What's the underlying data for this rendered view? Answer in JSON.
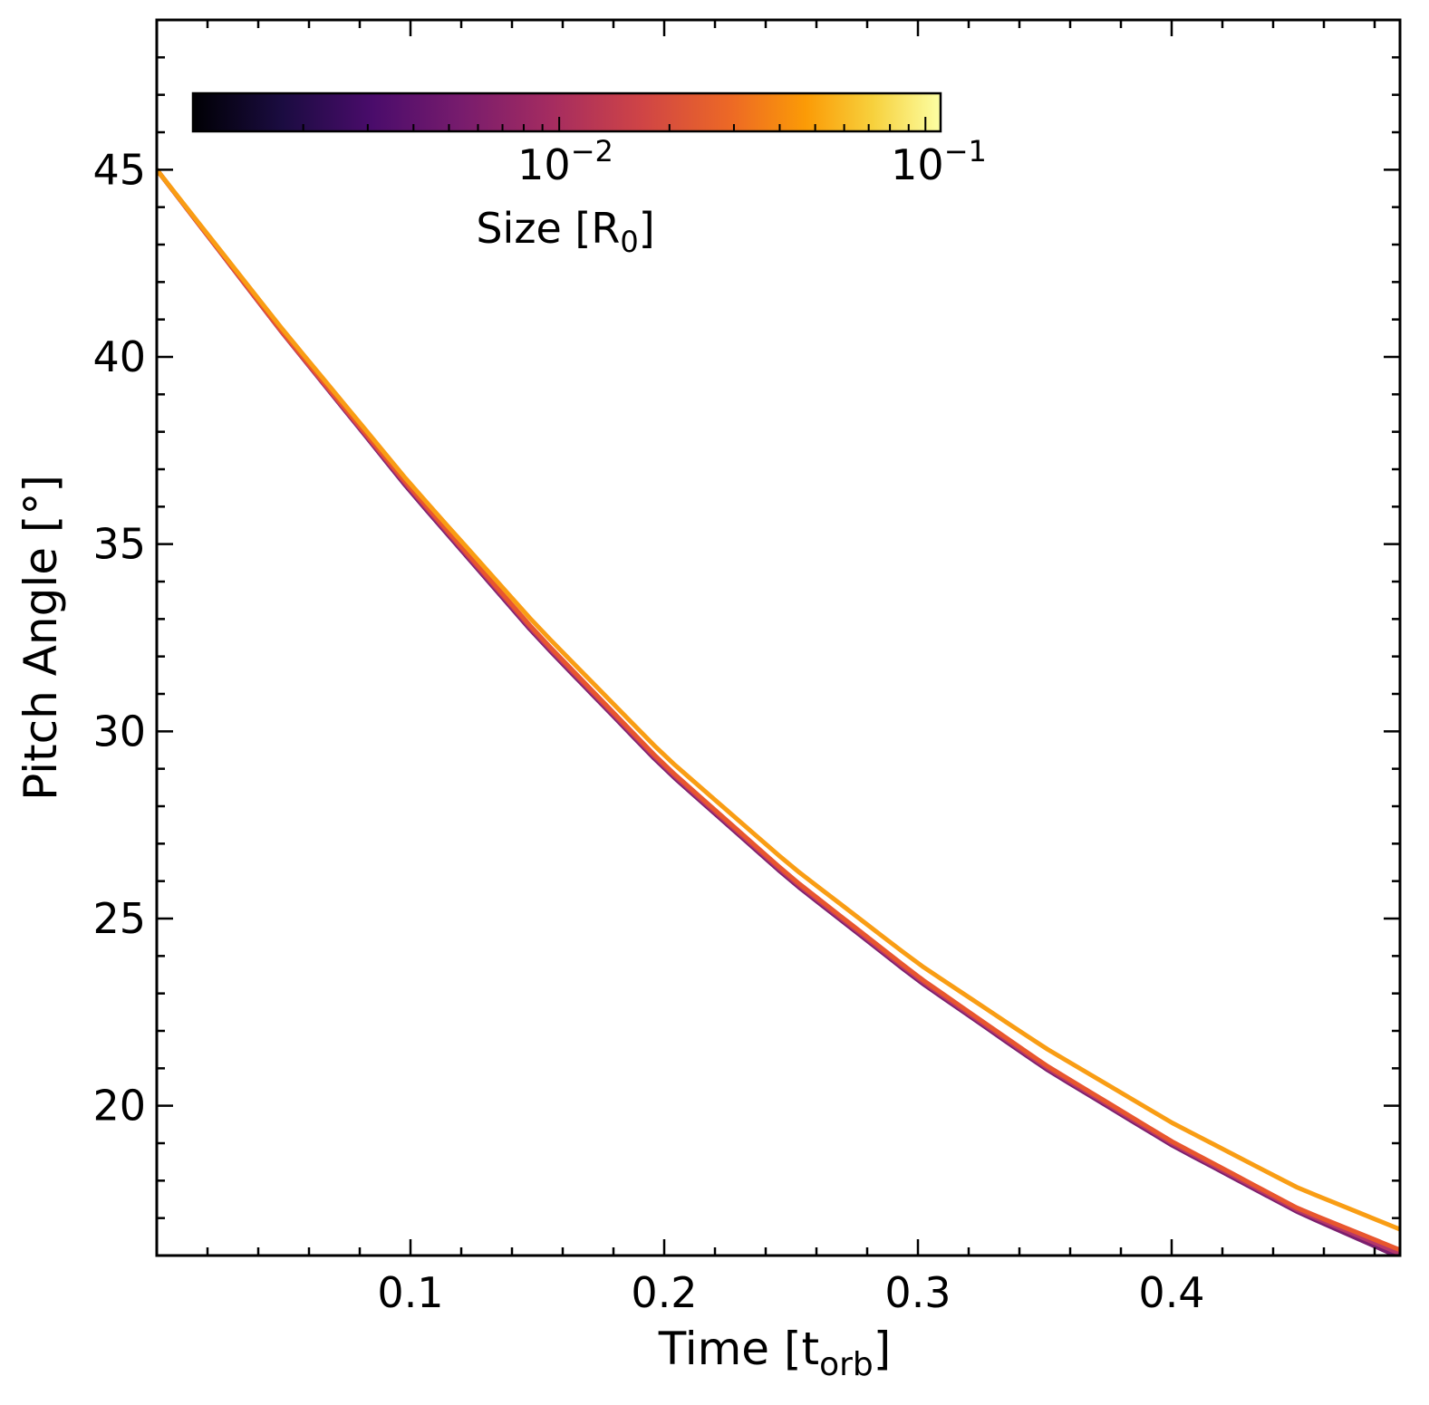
{
  "chart_data": {
    "type": "line",
    "xlabel": "Time [t",
    "xlabel_sub": "orb",
    "xlabel_close": "]",
    "ylabel": "Pitch Angle [°]",
    "xlim": [
      0.0,
      0.49
    ],
    "ylim": [
      16.0,
      49.0
    ],
    "xticks": [
      0.1,
      0.2,
      0.3,
      0.4
    ],
    "xtick_labels": [
      "0.1",
      "0.2",
      "0.3",
      "0.4"
    ],
    "yticks": [
      20,
      25,
      30,
      35,
      40,
      45
    ],
    "ytick_labels": [
      "20",
      "25",
      "30",
      "35",
      "40",
      "45"
    ],
    "grid": false,
    "colorbar": {
      "label": "Size [R",
      "label_sub": "0",
      "label_close": "]",
      "scale": "log",
      "range": [
        0.001,
        0.11
      ],
      "colormap": "inferno",
      "tick_labels": [
        {
          "base": "10",
          "exp": "−2",
          "value": 0.01
        },
        {
          "base": "10",
          "exp": "−1",
          "value": 0.1
        }
      ],
      "placement": "top-left, horizontal, inside axes"
    },
    "series": [
      {
        "color": "#7b1f6e",
        "size": 0.004,
        "x": [
          0.0,
          0.05,
          0.1,
          0.15,
          0.2,
          0.25,
          0.3,
          0.35,
          0.4,
          0.45,
          0.49
        ],
        "y": [
          45.0,
          40.6,
          36.4,
          32.5,
          29.0,
          26.0,
          23.35,
          21.0,
          18.95,
          17.15,
          15.95
        ]
      },
      {
        "color": "#b5366a",
        "size": 0.008,
        "x": [
          0.0,
          0.05,
          0.1,
          0.15,
          0.2,
          0.25,
          0.3,
          0.35,
          0.4,
          0.45,
          0.49
        ],
        "y": [
          45.0,
          40.6,
          36.45,
          32.55,
          29.05,
          26.05,
          23.4,
          21.05,
          19.0,
          17.2,
          16.05
        ]
      },
      {
        "color": "#e8562e",
        "size": 0.02,
        "x": [
          0.0,
          0.05,
          0.1,
          0.15,
          0.2,
          0.25,
          0.3,
          0.35,
          0.4,
          0.45,
          0.49
        ],
        "y": [
          45.0,
          40.62,
          36.5,
          32.6,
          29.1,
          26.1,
          23.45,
          21.1,
          19.05,
          17.25,
          16.15
        ]
      },
      {
        "color": "#f99d14",
        "size": 0.05,
        "x": [
          0.0,
          0.05,
          0.1,
          0.15,
          0.2,
          0.25,
          0.3,
          0.35,
          0.4,
          0.45,
          0.49
        ],
        "y": [
          45.0,
          40.7,
          36.6,
          32.8,
          29.35,
          26.4,
          23.8,
          21.55,
          19.55,
          17.8,
          16.7
        ]
      }
    ]
  }
}
